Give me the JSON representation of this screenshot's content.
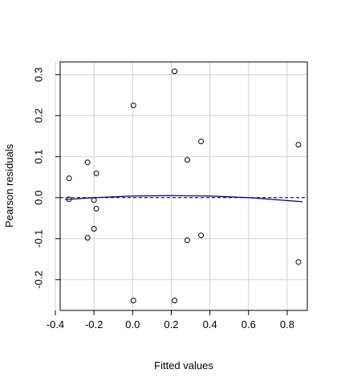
{
  "chart_data": {
    "type": "scatter",
    "xlabel": "Fitted values",
    "ylabel": "Pearson residuals",
    "x": [
      -0.329,
      -0.329,
      -0.233,
      -0.188,
      -0.2,
      -0.188,
      -0.2,
      -0.233,
      0.004,
      0.004,
      0.217,
      0.217,
      0.283,
      0.283,
      0.354,
      0.354,
      0.858,
      0.858
    ],
    "values": [
      0.047,
      -0.004,
      0.086,
      0.059,
      -0.006,
      -0.027,
      -0.076,
      -0.098,
      0.225,
      -0.251,
      0.308,
      -0.251,
      0.092,
      -0.104,
      0.137,
      -0.092,
      0.129,
      -0.157
    ],
    "color": "#000000",
    "smooth": {
      "x": [
        -0.35,
        -0.2,
        0,
        0.2,
        0.4,
        0.6,
        0.88
      ],
      "values": [
        -0.005,
        0,
        0.004,
        0.005,
        0.004,
        0,
        -0.01
      ],
      "color": "#00008b"
    },
    "hline": 0,
    "xlim": [
      -0.375,
      0.904
    ],
    "ylim": [
      -0.275,
      0.331
    ],
    "xticks": [
      -0.4,
      -0.2,
      {
        "value": 0,
        "label": "0.0"
      },
      0.2,
      0.4,
      0.6,
      0.8
    ],
    "yticks": [
      -0.2,
      -0.1,
      {
        "value": 0,
        "label": "0.0"
      },
      0.1,
      0.2,
      0.3
    ],
    "grid": true
  }
}
